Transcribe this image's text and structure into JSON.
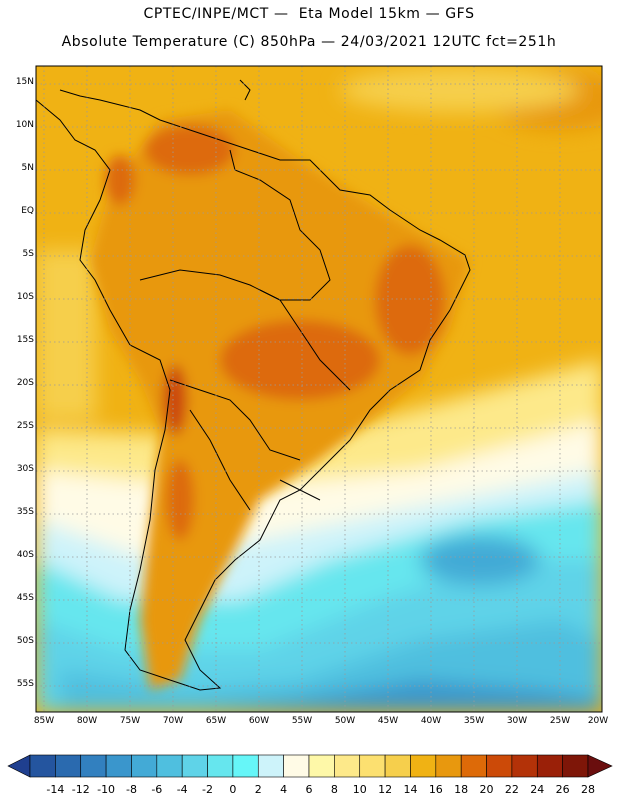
{
  "title_line1": "CPTEC/INPE/MCT —  Eta Model 15km — GFS",
  "title_line2": "Absolute Temperature (C) 850hPa — 24/03/2021 12UTC fct=251h",
  "lat_labels": [
    "15N",
    "10N",
    "5N",
    "EQ",
    "5S",
    "10S",
    "15S",
    "20S",
    "25S",
    "30S",
    "35S",
    "40S",
    "45S",
    "50S",
    "55S"
  ],
  "lon_labels": [
    "85W",
    "80W",
    "75W",
    "70W",
    "65W",
    "60W",
    "55W",
    "50W",
    "45W",
    "40W",
    "35W",
    "30W",
    "25W",
    "20W"
  ],
  "colorbar": {
    "ticks": [
      "-14",
      "-12",
      "-10",
      "-8",
      "-6",
      "-4",
      "-2",
      "0",
      "2",
      "4",
      "6",
      "8",
      "10",
      "12",
      "14",
      "16",
      "18",
      "20",
      "22",
      "24",
      "26",
      "28"
    ],
    "colors": [
      "#1f3f8f",
      "#24559f",
      "#2a6aaf",
      "#3280bf",
      "#3a96cc",
      "#43aad6",
      "#4fbfdf",
      "#5fd3e8",
      "#66e6ee",
      "#66f6f8",
      "#cdf3fa",
      "#fffbe6",
      "#fef8a8",
      "#fde98a",
      "#fce070",
      "#f6cf4c",
      "#f0b214",
      "#e8980e",
      "#dd6a08",
      "#cc4a08",
      "#b33208",
      "#9a2008",
      "#7e1608",
      "#6a0e0e"
    ]
  },
  "map": {
    "region": "South America",
    "variable": "Absolute Temperature (C) 850hPa",
    "lat_range": [
      "55S",
      "15N"
    ],
    "lon_range": [
      "85W",
      "20W"
    ]
  }
}
